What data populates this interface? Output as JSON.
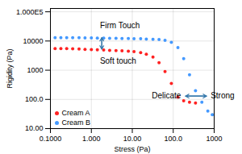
{
  "chart_data": {
    "type": "scatter",
    "xlabel": "Stress (Pa)",
    "ylabel": "Rigidity (Pa)",
    "log": true,
    "grid": true,
    "legend": "lower left",
    "marker": "circle",
    "xlim": [
      0.1,
      1000
    ],
    "ylim": [
      10,
      130000
    ],
    "xticks": [
      {
        "value": 0.1,
        "label": "0.1000"
      },
      {
        "value": 1,
        "label": "1.000"
      },
      {
        "value": 10,
        "label": "10.00"
      },
      {
        "value": 100,
        "label": "100.0"
      },
      1000
    ],
    "yticks": [
      {
        "value": 10,
        "label": "10.00"
      },
      {
        "value": 100,
        "label": "100.0"
      },
      1000,
      10000,
      {
        "value": 100000,
        "label": "1.000E5"
      }
    ],
    "series": [
      {
        "name": "Cream A",
        "color": "#ff2222",
        "x": [
          0.13,
          0.18,
          0.25,
          0.35,
          0.5,
          0.7,
          1.0,
          1.4,
          2.0,
          2.8,
          4.0,
          5.6,
          8.0,
          11,
          16,
          22,
          32,
          45,
          63,
          90,
          130,
          180,
          250,
          350
        ],
        "values": [
          5500,
          5500,
          5500,
          5400,
          5300,
          5200,
          5100,
          5000,
          4900,
          4800,
          4700,
          4600,
          4500,
          4300,
          4000,
          3500,
          2800,
          1800,
          900,
          350,
          120,
          90,
          80,
          75
        ]
      },
      {
        "name": "Cream B",
        "color": "#4499ff",
        "x": [
          0.13,
          0.18,
          0.25,
          0.35,
          0.5,
          0.7,
          1.0,
          1.4,
          2.0,
          2.8,
          4.0,
          5.6,
          8.0,
          11,
          16,
          22,
          32,
          45,
          63,
          90,
          130,
          180,
          250,
          350,
          500,
          700,
          900
        ],
        "values": [
          13000,
          13000,
          13000,
          13000,
          12900,
          12800,
          12700,
          12600,
          12500,
          12400,
          12300,
          12200,
          12100,
          12000,
          11900,
          11700,
          11500,
          11200,
          10500,
          9000,
          6000,
          2500,
          700,
          200,
          80,
          40,
          30
        ]
      }
    ],
    "arrows": [
      {
        "x1": 1.8,
        "y1": 5300,
        "x2": 1.8,
        "y2": 13000,
        "color": "#3377aa"
      },
      {
        "x1": 200,
        "y1": 130,
        "x2": 650,
        "y2": 130,
        "color": "#3377aa"
      }
    ],
    "annotations": [
      {
        "text": "Firm Touch",
        "x": 5.0,
        "y": 28000
      },
      {
        "text": "Soft touch",
        "x": 4.5,
        "y": 2700
      },
      {
        "text": "Delicate",
        "x": 155,
        "y": 130
      },
      {
        "text": "Strong",
        "x": 820,
        "y": 130
      }
    ]
  }
}
